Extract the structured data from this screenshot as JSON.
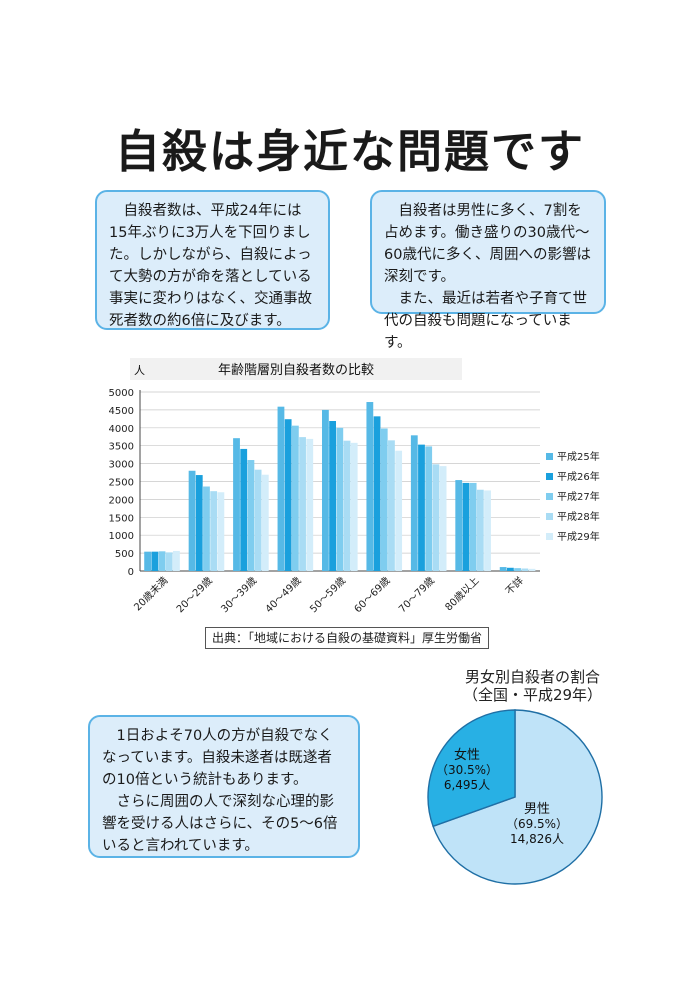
{
  "page": {
    "title": "自殺は身近な問題です",
    "box1": "自殺者数は、平成24年には15年ぶりに3万人を下回りました。しかしながら、自殺によって大勢の方が命を落としている事実に変わりはなく、交通事故死者数の約6倍に及びます。",
    "box2_p1": "自殺者は男性に多く、7割を占めます。働き盛りの30歳代～60歳代に多く、周囲への影響は深刻です。",
    "box2_p2": "また、最近は若者や子育て世代の自殺も問題になっています。",
    "box3_p1": "1日およそ70人の方が自殺でなくなっています。自殺未遂者は既遂者の10倍という統計もあります。",
    "box3_p2": "さらに周囲の人で深刻な心理的影響を受ける人はさらに、その5～6倍いると言われています。",
    "source": "出典：「地域における自殺の基礎資料」厚生労働省"
  },
  "chart_data": [
    {
      "type": "bar",
      "title": "年齢階層別自殺者数の比較",
      "ylabel": "人",
      "ylim": [
        0,
        5000
      ],
      "yticks": [
        0,
        500,
        1000,
        1500,
        2000,
        2500,
        3000,
        3500,
        4000,
        4500,
        5000
      ],
      "categories": [
        "20歳未満",
        "20～29歳",
        "30～39歳",
        "40～49歳",
        "50～59歳",
        "60～69歳",
        "70～79歳",
        "80歳以上",
        "不詳"
      ],
      "legend_position": "right",
      "series": [
        {
          "name": "平成25年",
          "color": "#56b9e6",
          "values": [
            540,
            2800,
            3710,
            4590,
            4500,
            4720,
            3790,
            2540,
            110
          ]
        },
        {
          "name": "平成26年",
          "color": "#1aa0dd",
          "values": [
            540,
            2680,
            3410,
            4240,
            4190,
            4320,
            3530,
            2460,
            90
          ]
        },
        {
          "name": "平成27年",
          "color": "#7fcdef",
          "values": [
            550,
            2360,
            3100,
            4060,
            4000,
            3980,
            3480,
            2460,
            80
          ]
        },
        {
          "name": "平成28年",
          "color": "#a9dcf4",
          "values": [
            520,
            2230,
            2830,
            3740,
            3640,
            3650,
            2980,
            2270,
            70
          ]
        },
        {
          "name": "平成29年",
          "color": "#d3edfa",
          "values": [
            560,
            2200,
            2690,
            3690,
            3580,
            3360,
            2930,
            2250,
            60
          ]
        }
      ]
    },
    {
      "type": "pie",
      "title": "男女別自殺者の割合",
      "subtitle": "（全国・平成29年）",
      "slices": [
        {
          "name": "女性",
          "pct": "（30.5%）",
          "count": "6,495人",
          "value": 6495,
          "color": "#28b0e4"
        },
        {
          "name": "男性",
          "pct": "（69.5%）",
          "count": "14,826人",
          "value": 14826,
          "color": "#bfe3f8"
        }
      ]
    }
  ]
}
